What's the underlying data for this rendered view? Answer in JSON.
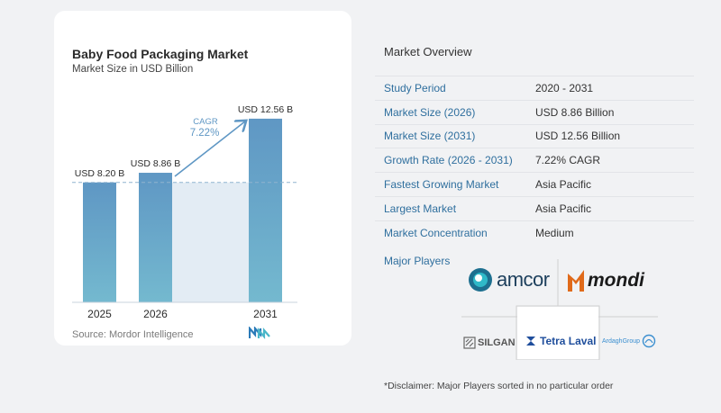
{
  "chart_data": {
    "type": "bar",
    "title": "Baby Food Packaging Market",
    "subtitle": "Market Size in USD Billion",
    "categories": [
      "2025",
      "2026",
      "2031"
    ],
    "values": [
      8.2,
      8.86,
      12.56
    ],
    "data_labels": [
      "USD 8.20 B",
      "USD 8.86 B",
      "USD 12.56 B"
    ],
    "annotation": {
      "label": "CAGR",
      "value": "7.22%"
    },
    "bar_color": "#5f97c4",
    "bar_color_bottom": "#74b9cf"
  },
  "source": "Source:  Mordor Intelligence",
  "overview": {
    "title": "Market Overview",
    "rows": [
      {
        "label": "Study Period",
        "value": "2020 - 2031"
      },
      {
        "label": "Market Size (2026)",
        "value": "USD 8.86 Billion"
      },
      {
        "label": "Market Size (2031)",
        "value": "USD 12.56 Billion"
      },
      {
        "label": "Growth Rate (2026 - 2031)",
        "value": "7.22% CAGR"
      },
      {
        "label": "Fastest Growing Market",
        "value": "Asia Pacific"
      },
      {
        "label": "Largest Market",
        "value": "Asia Pacific"
      },
      {
        "label": "Market Concentration",
        "value": "Medium"
      }
    ]
  },
  "players": {
    "label": "Major Players",
    "logos": [
      {
        "name": "amcor",
        "text": "amcor",
        "color": "#1d3f5c"
      },
      {
        "name": "mondi",
        "text": "mondi",
        "color": "#1a1a1a"
      },
      {
        "name": "silgan",
        "text": "SILGAN",
        "color": "#555555"
      },
      {
        "name": "tetra-laval",
        "text": "Tetra Laval",
        "color": "#1f4e9c"
      },
      {
        "name": "ardagh",
        "text": "ArdaghGroup",
        "color": "#3b8fd0"
      }
    ]
  },
  "disclaimer": "*Disclaimer: Major Players sorted in no particular order"
}
